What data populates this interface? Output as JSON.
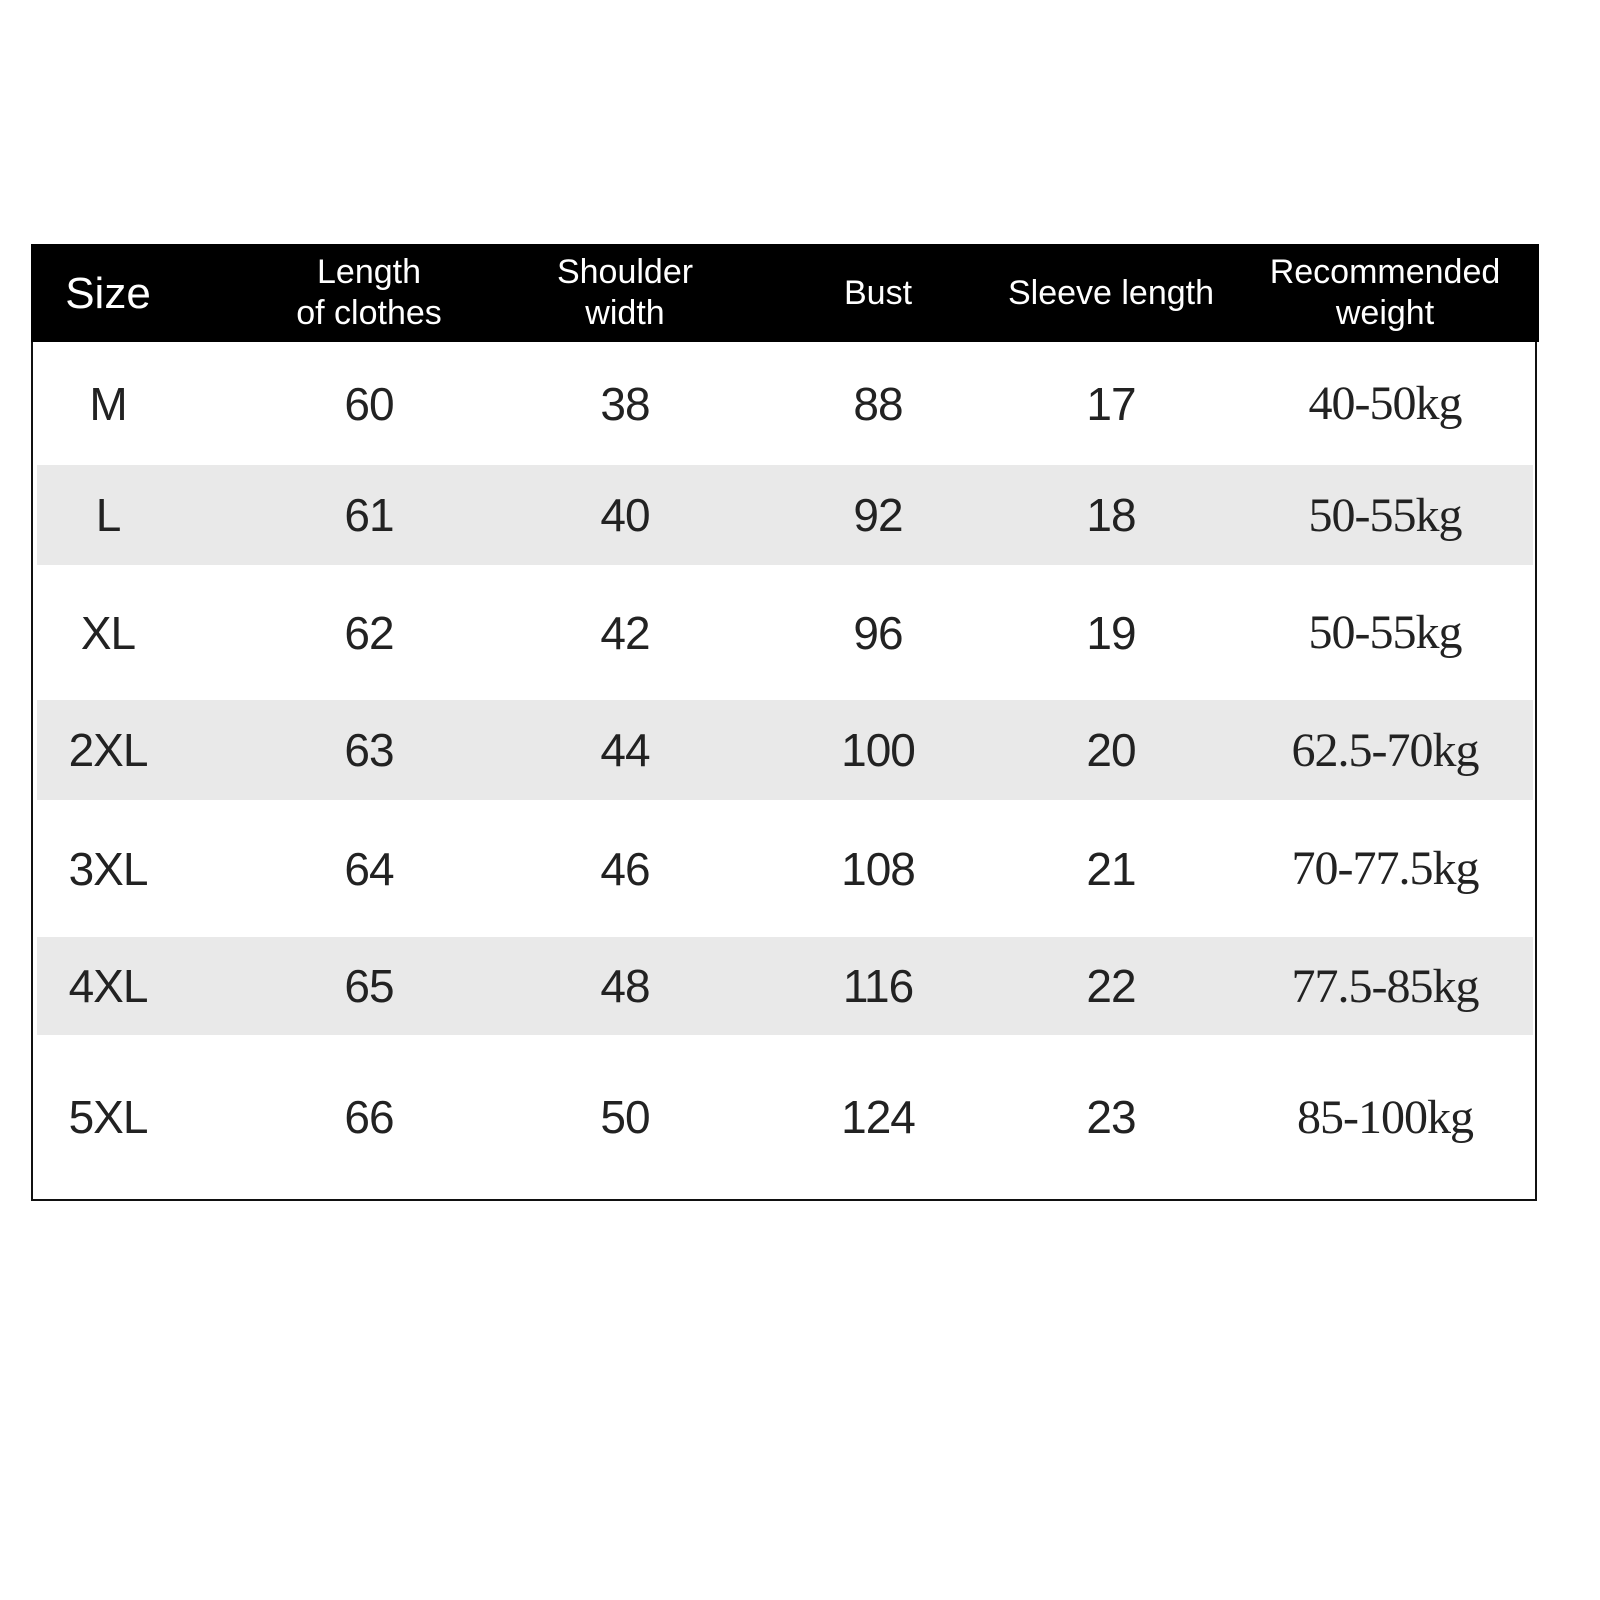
{
  "table": {
    "headers": [
      "Size",
      "Length\nof clothes",
      "Shoulder\nwidth",
      "Bust",
      "Sleeve length",
      "Recommended\nweight"
    ],
    "rows": [
      [
        "M",
        "60",
        "38",
        "88",
        "17",
        "40-50kg"
      ],
      [
        "L",
        "61",
        "40",
        "92",
        "18",
        "50-55kg"
      ],
      [
        "XL",
        "62",
        "42",
        "96",
        "19",
        "50-55kg"
      ],
      [
        "2XL",
        "63",
        "44",
        "100",
        "20",
        "62.5-70kg"
      ],
      [
        "3XL",
        "64",
        "46",
        "108",
        "21",
        "70-77.5kg"
      ],
      [
        "4XL",
        "65",
        "48",
        "116",
        "22",
        "77.5-85kg"
      ],
      [
        "5XL",
        "66",
        "50",
        "124",
        "23",
        "85-100kg"
      ]
    ]
  },
  "colors": {
    "header_bg": "#000000",
    "header_text": "#ffffff",
    "stripe": "#e9e9e9"
  }
}
